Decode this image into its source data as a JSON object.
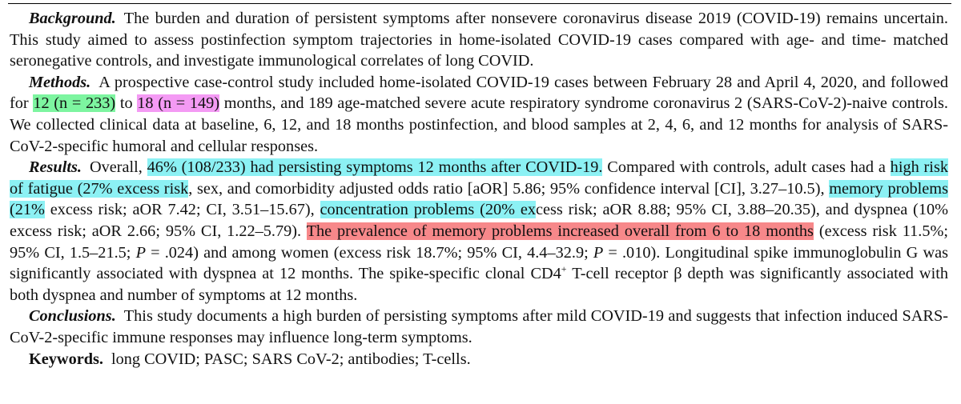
{
  "background": {
    "label": "Background.",
    "text": "The burden and duration of persistent symptoms after nonsevere coronavirus disease 2019 (COVID-19) remains uncertain. This study aimed to assess postinfection symptom trajectories in home-isolated COVID-19 cases compared with age- and time- matched seronegative controls, and investigate immunological correlates of long COVID."
  },
  "methods": {
    "label": "Methods.",
    "pre": "A prospective case-control study included home-isolated COVID-19 cases between February 28 and April 4, 2020, and followed for ",
    "hl1": "12 (n = 233)",
    "mid": " to ",
    "hl2": "18 (n = 149)",
    "post": " months, and 189 age-matched severe acute respiratory syndrome coronavirus 2 (SARS-CoV-2)-naive controls. We collected clinical data at baseline, 6, 12, and 18 months postinfection, and blood samples at 2, 4, 6, and 12 months for analysis of SARS-CoV-2-specific humoral and cellular responses."
  },
  "results": {
    "label": "Results.",
    "t1": "Overall, ",
    "h1": "46% (108/233) had persisting symptoms 12 months after COVID-19.",
    "t2": " Compared with controls, adult cases had a ",
    "h2": "high risk of fatigue (27% excess risk",
    "t3": ", sex, and comorbidity adjusted odds ratio [aOR] 5.86; 95% confidence interval [CI], 3.27–10.5), ",
    "h3": "memory problems (21%",
    "t4": " excess risk; aOR 7.42; CI, 3.51–15.67), ",
    "h4": "concentration problems (20% ex",
    "t5": "cess risk; aOR 8.88; 95% CI, 3.88–20.35), and dyspnea (10% excess risk; aOR 2.66; 95% CI, 1.22–5.79). ",
    "h5": "The prevalence of memory problems increased overall from 6 to 18 months",
    "t6": " (excess risk 11.5%; 95% CI, 1.5–21.5; ",
    "p1": "P",
    "t7": " = .024) and among women (excess risk 18.7%; 95% CI, 4.4–32.9; ",
    "p2": "P",
    "t8": " = .010). Longitudinal spike immunoglobulin G was significantly associated with dyspnea at 12 months. The spike-specific clonal CD4",
    "sup": "+",
    "t9": " T-cell receptor β depth was significantly associated with both dyspnea and number of symptoms at 12 months."
  },
  "conclusions": {
    "label": "Conclusions.",
    "text": "This study documents a high burden of persisting symptoms after mild COVID-19 and suggests that infection induced SARS-CoV-2-specific immune responses may influence long-term symptoms."
  },
  "keywords": {
    "label": "Keywords.",
    "text": "long COVID; PASC; SARS CoV-2; antibodies; T-cells."
  },
  "highlight_colors": {
    "green": "#7df5a0",
    "pink": "#f49af4",
    "cyan": "#8cf1f4",
    "red": "#f7888a"
  }
}
